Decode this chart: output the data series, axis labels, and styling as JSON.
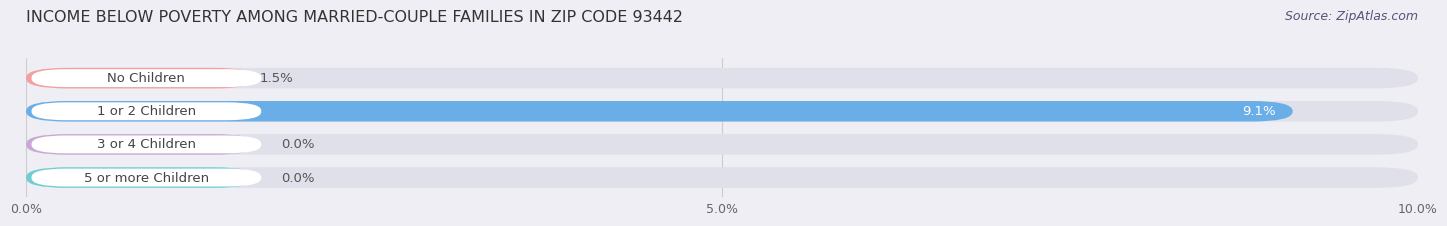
{
  "title": "INCOME BELOW POVERTY AMONG MARRIED-COUPLE FAMILIES IN ZIP CODE 93442",
  "source": "Source: ZipAtlas.com",
  "categories": [
    "No Children",
    "1 or 2 Children",
    "3 or 4 Children",
    "5 or more Children"
  ],
  "values": [
    1.5,
    9.1,
    0.0,
    0.0
  ],
  "bar_colors": [
    "#f4a0a0",
    "#6aaee8",
    "#c9a8d4",
    "#72cece"
  ],
  "xlim": [
    0,
    10.0
  ],
  "xticks": [
    0.0,
    5.0,
    10.0
  ],
  "xtick_labels": [
    "0.0%",
    "5.0%",
    "10.0%"
  ],
  "background_color": "#eeeef4",
  "bar_background_color": "#e0e0ea",
  "label_pill_color": "#ffffff",
  "title_fontsize": 11.5,
  "label_fontsize": 9.5,
  "source_fontsize": 9,
  "tick_fontsize": 9,
  "title_color": "#333333",
  "source_color": "#555577",
  "label_color": "#444444",
  "value_color_inside": "#ffffff",
  "value_color_outside": "#555555",
  "grid_color": "#cccccc"
}
